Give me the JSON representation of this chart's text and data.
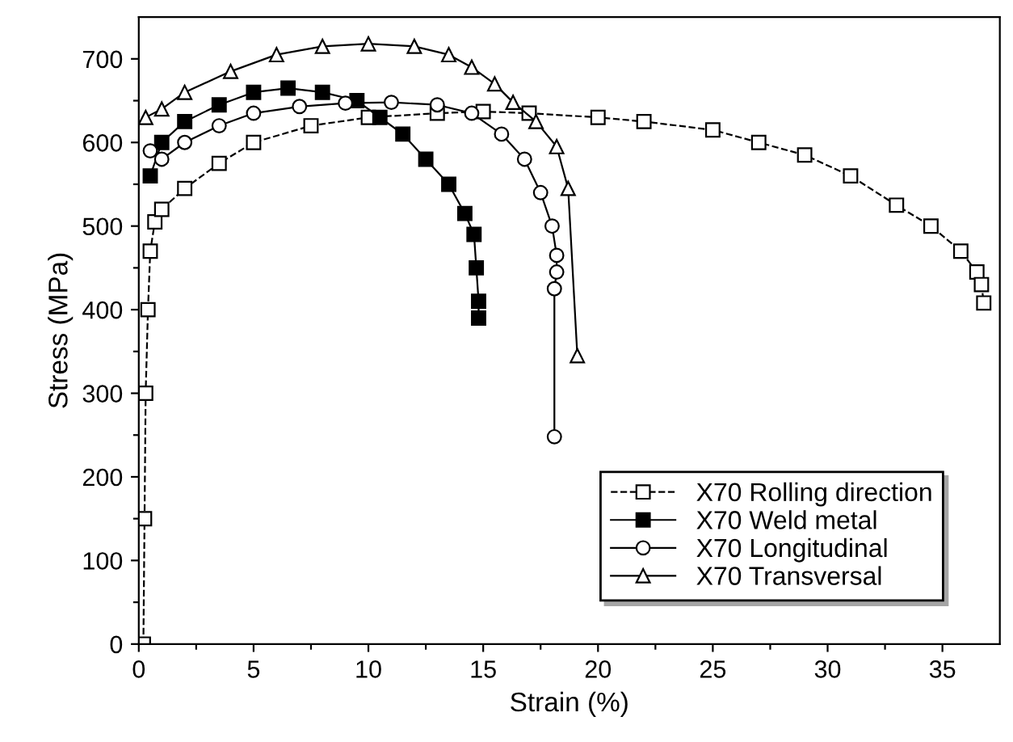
{
  "chart_data": {
    "type": "line",
    "xlabel": "Strain (%)",
    "ylabel": "Stress (MPa)",
    "xlim": [
      0,
      37.5
    ],
    "ylim": [
      0,
      750
    ],
    "xticks": [
      0,
      {
        "value": 2.5,
        "label": null
      },
      5,
      {
        "value": 7.5,
        "label": null
      },
      10,
      {
        "value": 12.5,
        "label": null
      },
      15,
      {
        "value": 17.5,
        "label": null
      },
      20,
      {
        "value": 22.5,
        "label": null
      },
      25,
      {
        "value": 27.5,
        "label": null
      },
      30,
      {
        "value": 32.5,
        "label": null
      },
      35
    ],
    "yticks": [
      0,
      {
        "value": 50,
        "label": null
      },
      100,
      {
        "value": 150,
        "label": null
      },
      200,
      {
        "value": 250,
        "label": null
      },
      300,
      {
        "value": 350,
        "label": null
      },
      400,
      {
        "value": 450,
        "label": null
      },
      500,
      {
        "value": 550,
        "label": null
      },
      600,
      {
        "value": 650,
        "label": null
      },
      700
    ],
    "grid": false,
    "legend": "bottom right",
    "series": [
      {
        "name": "X70 Rolling direction",
        "color": "#ffffff",
        "marker": "square",
        "line_style": "dashed",
        "x": [
          0.2,
          0.25,
          0.3,
          0.4,
          0.5,
          0.7,
          1,
          2,
          3.5,
          5,
          7.5,
          10,
          13,
          15,
          17,
          20,
          22,
          25,
          27,
          29,
          31,
          33,
          34.5,
          35.8,
          36.5,
          36.7,
          36.8
        ],
        "values": [
          0,
          150,
          300,
          400,
          470,
          505,
          520,
          545,
          575,
          600,
          620,
          630,
          635,
          637,
          635,
          630,
          625,
          615,
          600,
          585,
          560,
          525,
          500,
          470,
          445,
          430,
          408
        ]
      },
      {
        "name": "X70 Weld metal",
        "color": "#000000",
        "marker": "square",
        "line_style": "solid",
        "x": [
          0.5,
          1,
          2,
          3.5,
          5,
          6.5,
          8,
          9.5,
          10.5,
          11.5,
          12.5,
          13.5,
          14.2,
          14.6,
          14.7,
          14.8,
          14.8
        ],
        "values": [
          560,
          600,
          625,
          645,
          660,
          665,
          660,
          650,
          630,
          610,
          580,
          550,
          515,
          490,
          450,
          410,
          390
        ]
      },
      {
        "name": "X70 Longitudinal",
        "color": "#ffffff",
        "marker": "circle",
        "line_style": "solid",
        "x": [
          0.5,
          1,
          2,
          3.5,
          5,
          7,
          9,
          11,
          13,
          14.5,
          15.8,
          16.8,
          17.5,
          18,
          18.2,
          18.2,
          18.1,
          18.1
        ],
        "values": [
          590,
          580,
          600,
          620,
          635,
          643,
          647,
          648,
          645,
          635,
          610,
          580,
          540,
          500,
          465,
          445,
          425,
          248
        ]
      },
      {
        "name": "X70 Transversal",
        "color": "#ffffff",
        "marker": "triangle",
        "line_style": "solid",
        "x": [
          0.3,
          1,
          2,
          4,
          6,
          8,
          10,
          12,
          13.5,
          14.5,
          15.5,
          16.3,
          17.3,
          18.2,
          18.7,
          19.1
        ],
        "values": [
          630,
          640,
          660,
          685,
          705,
          715,
          718,
          715,
          705,
          690,
          670,
          648,
          625,
          595,
          545,
          345
        ]
      }
    ]
  }
}
